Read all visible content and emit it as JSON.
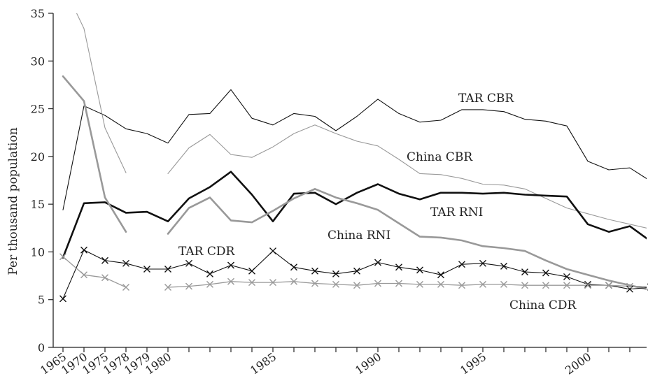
{
  "chart_data": {
    "type": "line",
    "title": "",
    "xlabel": "",
    "ylabel": "Per thousand population",
    "ylim": [
      0,
      35
    ],
    "yticks": [
      0,
      5,
      10,
      15,
      20,
      25,
      30,
      35
    ],
    "xticks": [
      "1965",
      "1970",
      "1975",
      "1978",
      "1979",
      "1980",
      "1985",
      "1990",
      "1995",
      "2000"
    ],
    "x": [
      "1965",
      "1970",
      "1975",
      "1978",
      "1979",
      "1980",
      "1981",
      "1982",
      "1983",
      "1984",
      "1985",
      "1986",
      "1987",
      "1988",
      "1989",
      "1990",
      "1991",
      "1992",
      "1993",
      "1994",
      "1995",
      "1996",
      "1997",
      "1998",
      "1999",
      "2000",
      "2001",
      "2002",
      "2003"
    ],
    "grid": false,
    "legend": "none (series labelled inline)",
    "series": [
      {
        "name": "TAR CBR",
        "color": "#111111",
        "marker": "none",
        "values": [
          14.4,
          25.3,
          24.3,
          22.9,
          22.4,
          21.4,
          24.4,
          24.5,
          27.0,
          24.0,
          23.3,
          24.5,
          24.2,
          22.7,
          24.2,
          26.0,
          24.5,
          23.6,
          23.8,
          24.9,
          24.9,
          24.7,
          23.9,
          23.7,
          23.2,
          19.5,
          18.6,
          18.8,
          17.4
        ]
      },
      {
        "name": "China CBR",
        "color": "#999999",
        "marker": "none",
        "values": [
          38.0,
          33.4,
          23.0,
          18.3,
          null,
          18.2,
          20.9,
          22.3,
          20.2,
          19.9,
          21.0,
          22.4,
          23.3,
          22.4,
          21.6,
          21.1,
          19.7,
          18.2,
          18.1,
          17.7,
          17.1,
          17.0,
          16.6,
          15.6,
          14.6,
          14.0,
          13.4,
          12.9,
          12.4
        ]
      },
      {
        "name": "TAR RNI",
        "color": "#111111",
        "marker": "none",
        "values": [
          9.4,
          15.1,
          15.2,
          14.1,
          14.2,
          13.2,
          15.6,
          16.8,
          18.4,
          16.0,
          13.2,
          16.1,
          16.2,
          15.0,
          16.2,
          17.1,
          16.1,
          15.5,
          16.2,
          16.2,
          16.1,
          16.2,
          16.0,
          15.9,
          15.8,
          12.9,
          12.1,
          12.7,
          11.1
        ]
      },
      {
        "name": "China RNI",
        "color": "#999999",
        "marker": "none",
        "values": [
          28.4,
          25.8,
          15.7,
          12.1,
          null,
          11.9,
          14.6,
          15.7,
          13.3,
          13.1,
          14.3,
          15.6,
          16.6,
          15.7,
          15.1,
          14.4,
          13.0,
          11.6,
          11.5,
          11.2,
          10.6,
          10.4,
          10.1,
          9.1,
          8.2,
          7.6,
          7.0,
          6.5,
          6.0
        ]
      },
      {
        "name": "TAR CDR",
        "color": "#111111",
        "marker": "x",
        "values": [
          5.1,
          10.2,
          9.1,
          8.8,
          8.2,
          8.2,
          8.8,
          7.7,
          8.6,
          8.0,
          10.1,
          8.4,
          8.0,
          7.7,
          8.0,
          8.9,
          8.4,
          8.1,
          7.6,
          8.7,
          8.8,
          8.5,
          7.9,
          7.8,
          7.4,
          6.6,
          6.5,
          6.1,
          6.3
        ]
      },
      {
        "name": "China CDR",
        "color": "#999999",
        "marker": "x",
        "values": [
          9.5,
          7.6,
          7.3,
          6.3,
          null,
          6.3,
          6.4,
          6.6,
          6.9,
          6.8,
          6.8,
          6.9,
          6.7,
          6.6,
          6.5,
          6.7,
          6.7,
          6.6,
          6.6,
          6.5,
          6.6,
          6.6,
          6.5,
          6.5,
          6.5,
          6.5,
          6.5,
          6.4,
          6.4
        ]
      }
    ]
  }
}
